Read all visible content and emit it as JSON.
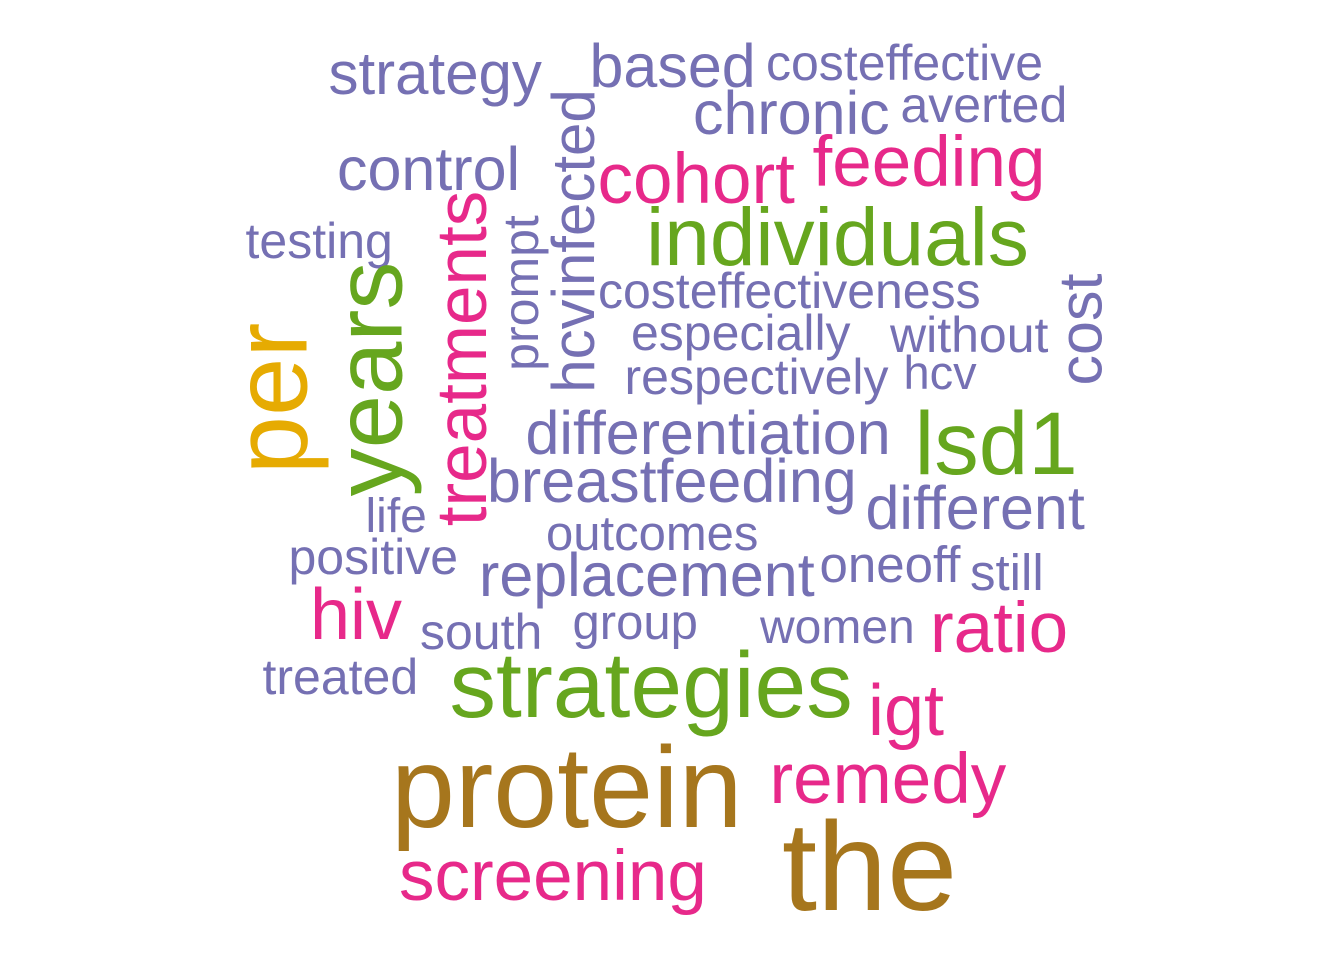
{
  "palette": {
    "purple": "#7570b3",
    "pink": "#e7298a",
    "green": "#66a61e",
    "gold": "#e6ab02",
    "brown": "#a6761d"
  },
  "words": [
    {
      "text": "strategy",
      "color": "purple",
      "orientation": "horizontal"
    },
    {
      "text": "based",
      "color": "purple",
      "orientation": "horizontal"
    },
    {
      "text": "costeffective",
      "color": "purple",
      "orientation": "horizontal"
    },
    {
      "text": "chronic",
      "color": "purple",
      "orientation": "horizontal"
    },
    {
      "text": "averted",
      "color": "purple",
      "orientation": "horizontal"
    },
    {
      "text": "control",
      "color": "purple",
      "orientation": "horizontal"
    },
    {
      "text": "hcvinfected",
      "color": "purple",
      "orientation": "vertical"
    },
    {
      "text": "cohort",
      "color": "pink",
      "orientation": "horizontal"
    },
    {
      "text": "feeding",
      "color": "pink",
      "orientation": "horizontal"
    },
    {
      "text": "testing",
      "color": "purple",
      "orientation": "horizontal"
    },
    {
      "text": "treatments",
      "color": "pink",
      "orientation": "vertical"
    },
    {
      "text": "prompt",
      "color": "purple",
      "orientation": "vertical"
    },
    {
      "text": "individuals",
      "color": "green",
      "orientation": "horizontal"
    },
    {
      "text": "costeffectiveness",
      "color": "purple",
      "orientation": "horizontal"
    },
    {
      "text": "cost",
      "color": "purple",
      "orientation": "vertical"
    },
    {
      "text": "per",
      "color": "gold",
      "orientation": "vertical"
    },
    {
      "text": "years",
      "color": "green",
      "orientation": "vertical"
    },
    {
      "text": "especially",
      "color": "purple",
      "orientation": "horizontal"
    },
    {
      "text": "without",
      "color": "purple",
      "orientation": "horizontal"
    },
    {
      "text": "respectively",
      "color": "purple",
      "orientation": "horizontal"
    },
    {
      "text": "hcv",
      "color": "purple",
      "orientation": "horizontal"
    },
    {
      "text": "differentiation",
      "color": "purple",
      "orientation": "horizontal"
    },
    {
      "text": "lsd1",
      "color": "green",
      "orientation": "horizontal"
    },
    {
      "text": "breastfeeding",
      "color": "purple",
      "orientation": "horizontal"
    },
    {
      "text": "different",
      "color": "purple",
      "orientation": "horizontal"
    },
    {
      "text": "life",
      "color": "purple",
      "orientation": "horizontal"
    },
    {
      "text": "outcomes",
      "color": "purple",
      "orientation": "horizontal"
    },
    {
      "text": "positive",
      "color": "purple",
      "orientation": "horizontal"
    },
    {
      "text": "replacement",
      "color": "purple",
      "orientation": "horizontal"
    },
    {
      "text": "oneoff",
      "color": "purple",
      "orientation": "horizontal"
    },
    {
      "text": "still",
      "color": "purple",
      "orientation": "horizontal"
    },
    {
      "text": "hiv",
      "color": "pink",
      "orientation": "horizontal"
    },
    {
      "text": "south",
      "color": "purple",
      "orientation": "horizontal"
    },
    {
      "text": "group",
      "color": "purple",
      "orientation": "horizontal"
    },
    {
      "text": "women",
      "color": "purple",
      "orientation": "horizontal"
    },
    {
      "text": "ratio",
      "color": "pink",
      "orientation": "horizontal"
    },
    {
      "text": "treated",
      "color": "purple",
      "orientation": "horizontal"
    },
    {
      "text": "strategies",
      "color": "green",
      "orientation": "horizontal"
    },
    {
      "text": "igt",
      "color": "pink",
      "orientation": "horizontal"
    },
    {
      "text": "protein",
      "color": "brown",
      "orientation": "horizontal"
    },
    {
      "text": "remedy",
      "color": "pink",
      "orientation": "horizontal"
    },
    {
      "text": "the",
      "color": "brown",
      "orientation": "horizontal"
    },
    {
      "text": "screening",
      "color": "pink",
      "orientation": "horizontal"
    }
  ]
}
